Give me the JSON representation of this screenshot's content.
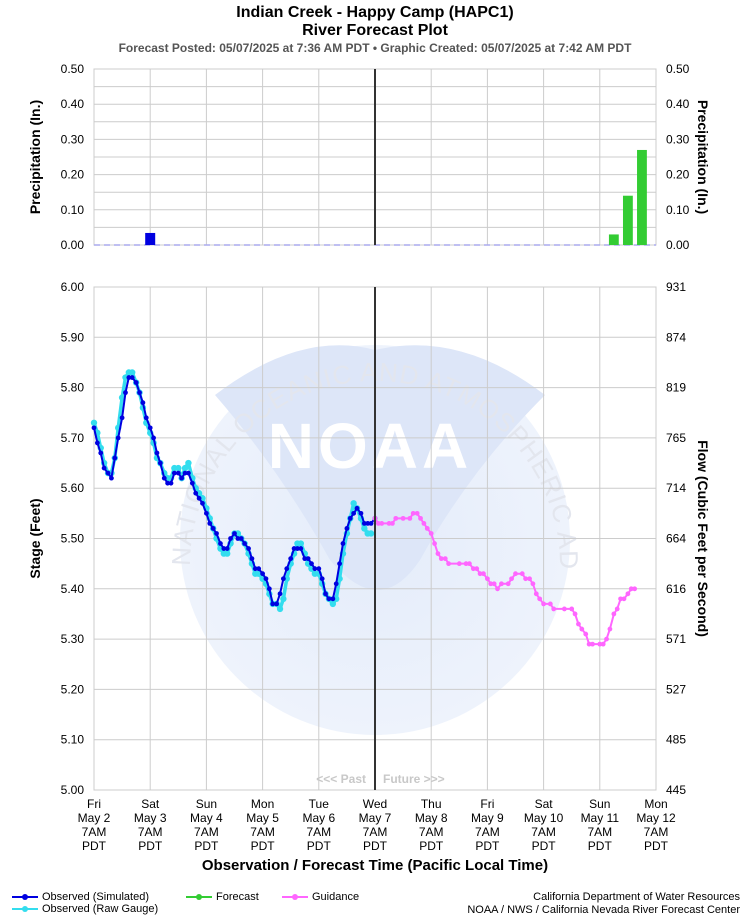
{
  "header": {
    "title": "Indian Creek - Happy Camp (HAPC1)",
    "subtitle": "River Forecast Plot",
    "posted": "Forecast Posted: 05/07/2025 at 7:36 AM PDT  •  Graphic Created: 05/07/2025 at 7:42 AM PDT"
  },
  "colors": {
    "observed_sim": "#0000e0",
    "observed_raw": "#33ddee",
    "forecast": "#33cc33",
    "guidance": "#ff66ff",
    "precip_obs": "#0000e0",
    "precip_fcst": "#33cc33",
    "now_line": "#333333",
    "grid": "#cccccc"
  },
  "watermark": {
    "logo_text": "NOAA",
    "ring_text": "NATIONAL OCEANIC AND ATMOSPHERIC ADMINISTRATION · U.S. DEPARTMENT OF COMMERCE",
    "past_label": "<<< Past",
    "future_label": "Future >>>"
  },
  "legend": {
    "observed_sim": "Observed (Simulated)",
    "observed_raw": "Observed (Raw Gauge)",
    "forecast": "Forecast",
    "guidance": "Guidance"
  },
  "credits": {
    "line1": "California Department of Water Resources",
    "line2": "NOAA / NWS / California Nevada River Forecast Center"
  },
  "chart_data": [
    {
      "type": "bar",
      "ylabel_left": "Precipitation (In.)",
      "ylabel_right": "Precipitation (In.)",
      "ylim": [
        0,
        0.5
      ],
      "yticks": [
        "0.00",
        "0.10",
        "0.20",
        "0.30",
        "0.40",
        "0.50"
      ],
      "grid": true,
      "observed_precip": [
        {
          "x": 1.0,
          "value": 0.02
        }
      ],
      "forecast_precip": [
        {
          "x": 9.25,
          "value": 0.03
        },
        {
          "x": 9.5,
          "value": 0.14
        },
        {
          "x": 9.75,
          "value": 0.27
        }
      ]
    },
    {
      "type": "line",
      "xlabel": "Observation / Forecast Time (Pacific Local Time)",
      "ylabel_left": "Stage (Feet)",
      "ylabel_right": "Flow (Cubic Feet per Second)",
      "ylim": [
        5.0,
        6.0
      ],
      "yticks": [
        "5.00",
        "5.10",
        "5.20",
        "5.30",
        "5.40",
        "5.50",
        "5.60",
        "5.70",
        "5.80",
        "5.90",
        "6.00"
      ],
      "flow_ticks": [
        "445",
        "485",
        "527",
        "571",
        "616",
        "664",
        "714",
        "765",
        "819",
        "874",
        "931"
      ],
      "grid": true,
      "now_x": 5.0,
      "x_ticks": [
        {
          "day": "Fri",
          "date": "May 2",
          "time": "7AM",
          "tz": "PDT"
        },
        {
          "day": "Sat",
          "date": "May 3",
          "time": "7AM",
          "tz": "PDT"
        },
        {
          "day": "Sun",
          "date": "May 4",
          "time": "7AM",
          "tz": "PDT"
        },
        {
          "day": "Mon",
          "date": "May 5",
          "time": "7AM",
          "tz": "PDT"
        },
        {
          "day": "Tue",
          "date": "May 6",
          "time": "7AM",
          "tz": "PDT"
        },
        {
          "day": "Wed",
          "date": "May 7",
          "time": "7AM",
          "tz": "PDT"
        },
        {
          "day": "Thu",
          "date": "May 8",
          "time": "7AM",
          "tz": "PDT"
        },
        {
          "day": "Fri",
          "date": "May 9",
          "time": "7AM",
          "tz": "PDT"
        },
        {
          "day": "Sat",
          "date": "May 10",
          "time": "7AM",
          "tz": "PDT"
        },
        {
          "day": "Sun",
          "date": "May 11",
          "time": "7AM",
          "tz": "PDT"
        },
        {
          "day": "Mon",
          "date": "May 12",
          "time": "7AM",
          "tz": "PDT"
        }
      ],
      "series": [
        {
          "name": "Observed (Raw Gauge)",
          "points": [
            [
              0.0,
              5.73
            ],
            [
              0.06,
              5.71
            ],
            [
              0.12,
              5.68
            ],
            [
              0.18,
              5.65
            ],
            [
              0.25,
              5.63
            ],
            [
              0.31,
              5.63
            ],
            [
              0.37,
              5.66
            ],
            [
              0.43,
              5.72
            ],
            [
              0.5,
              5.78
            ],
            [
              0.56,
              5.82
            ],
            [
              0.62,
              5.83
            ],
            [
              0.68,
              5.83
            ],
            [
              0.75,
              5.81
            ],
            [
              0.81,
              5.79
            ],
            [
              0.87,
              5.76
            ],
            [
              0.93,
              5.73
            ],
            [
              1.0,
              5.71
            ],
            [
              1.06,
              5.69
            ],
            [
              1.12,
              5.66
            ],
            [
              1.18,
              5.65
            ],
            [
              1.25,
              5.63
            ],
            [
              1.31,
              5.62
            ],
            [
              1.37,
              5.62
            ],
            [
              1.43,
              5.64
            ],
            [
              1.5,
              5.64
            ],
            [
              1.56,
              5.62
            ],
            [
              1.62,
              5.64
            ],
            [
              1.68,
              5.65
            ],
            [
              1.75,
              5.62
            ],
            [
              1.81,
              5.6
            ],
            [
              1.87,
              5.59
            ],
            [
              1.93,
              5.58
            ],
            [
              2.0,
              5.56
            ],
            [
              2.06,
              5.54
            ],
            [
              2.12,
              5.52
            ],
            [
              2.18,
              5.5
            ],
            [
              2.25,
              5.48
            ],
            [
              2.31,
              5.47
            ],
            [
              2.37,
              5.47
            ],
            [
              2.43,
              5.49
            ],
            [
              2.5,
              5.51
            ],
            [
              2.56,
              5.51
            ],
            [
              2.62,
              5.5
            ],
            [
              2.68,
              5.49
            ],
            [
              2.75,
              5.47
            ],
            [
              2.81,
              5.45
            ],
            [
              2.87,
              5.43
            ],
            [
              2.93,
              5.43
            ],
            [
              3.0,
              5.42
            ],
            [
              3.06,
              5.41
            ],
            [
              3.12,
              5.39
            ],
            [
              3.18,
              5.37
            ],
            [
              3.25,
              5.37
            ],
            [
              3.31,
              5.36
            ],
            [
              3.37,
              5.38
            ],
            [
              3.43,
              5.42
            ],
            [
              3.5,
              5.45
            ],
            [
              3.56,
              5.47
            ],
            [
              3.62,
              5.49
            ],
            [
              3.68,
              5.49
            ],
            [
              3.75,
              5.47
            ],
            [
              3.81,
              5.45
            ],
            [
              3.87,
              5.44
            ],
            [
              3.93,
              5.43
            ],
            [
              4.0,
              5.43
            ],
            [
              4.06,
              5.41
            ],
            [
              4.12,
              5.39
            ],
            [
              4.18,
              5.38
            ],
            [
              4.25,
              5.37
            ],
            [
              4.31,
              5.38
            ],
            [
              4.37,
              5.42
            ],
            [
              4.43,
              5.47
            ],
            [
              4.5,
              5.51
            ],
            [
              4.56,
              5.54
            ],
            [
              4.62,
              5.57
            ],
            [
              4.68,
              5.56
            ],
            [
              4.75,
              5.54
            ],
            [
              4.81,
              5.52
            ],
            [
              4.87,
              5.51
            ],
            [
              4.93,
              5.51
            ]
          ]
        },
        {
          "name": "Observed (Simulated)",
          "points": [
            [
              0.0,
              5.72
            ],
            [
              0.06,
              5.69
            ],
            [
              0.12,
              5.67
            ],
            [
              0.18,
              5.64
            ],
            [
              0.25,
              5.63
            ],
            [
              0.31,
              5.62
            ],
            [
              0.37,
              5.66
            ],
            [
              0.43,
              5.7
            ],
            [
              0.5,
              5.74
            ],
            [
              0.56,
              5.79
            ],
            [
              0.62,
              5.82
            ],
            [
              0.68,
              5.82
            ],
            [
              0.75,
              5.81
            ],
            [
              0.81,
              5.79
            ],
            [
              0.87,
              5.77
            ],
            [
              0.93,
              5.74
            ],
            [
              1.0,
              5.72
            ],
            [
              1.06,
              5.7
            ],
            [
              1.12,
              5.67
            ],
            [
              1.18,
              5.65
            ],
            [
              1.25,
              5.62
            ],
            [
              1.31,
              5.61
            ],
            [
              1.37,
              5.61
            ],
            [
              1.43,
              5.63
            ],
            [
              1.5,
              5.63
            ],
            [
              1.56,
              5.62
            ],
            [
              1.62,
              5.63
            ],
            [
              1.68,
              5.63
            ],
            [
              1.75,
              5.61
            ],
            [
              1.81,
              5.59
            ],
            [
              1.87,
              5.58
            ],
            [
              1.93,
              5.57
            ],
            [
              2.0,
              5.55
            ],
            [
              2.06,
              5.53
            ],
            [
              2.12,
              5.52
            ],
            [
              2.18,
              5.51
            ],
            [
              2.25,
              5.49
            ],
            [
              2.31,
              5.48
            ],
            [
              2.37,
              5.48
            ],
            [
              2.43,
              5.5
            ],
            [
              2.5,
              5.51
            ],
            [
              2.56,
              5.5
            ],
            [
              2.62,
              5.5
            ],
            [
              2.68,
              5.49
            ],
            [
              2.75,
              5.48
            ],
            [
              2.81,
              5.46
            ],
            [
              2.87,
              5.44
            ],
            [
              2.93,
              5.44
            ],
            [
              3.0,
              5.43
            ],
            [
              3.06,
              5.42
            ],
            [
              3.12,
              5.4
            ],
            [
              3.18,
              5.37
            ],
            [
              3.25,
              5.37
            ],
            [
              3.31,
              5.39
            ],
            [
              3.37,
              5.42
            ],
            [
              3.43,
              5.44
            ],
            [
              3.5,
              5.46
            ],
            [
              3.56,
              5.48
            ],
            [
              3.62,
              5.48
            ],
            [
              3.68,
              5.48
            ],
            [
              3.75,
              5.46
            ],
            [
              3.81,
              5.46
            ],
            [
              3.87,
              5.45
            ],
            [
              3.93,
              5.44
            ],
            [
              4.0,
              5.44
            ],
            [
              4.06,
              5.42
            ],
            [
              4.12,
              5.39
            ],
            [
              4.18,
              5.38
            ],
            [
              4.25,
              5.38
            ],
            [
              4.31,
              5.41
            ],
            [
              4.37,
              5.45
            ],
            [
              4.43,
              5.49
            ],
            [
              4.5,
              5.52
            ],
            [
              4.56,
              5.54
            ],
            [
              4.62,
              5.55
            ],
            [
              4.68,
              5.56
            ],
            [
              4.75,
              5.55
            ],
            [
              4.81,
              5.53
            ],
            [
              4.87,
              5.53
            ],
            [
              4.93,
              5.53
            ],
            [
              5.0,
              5.54
            ]
          ]
        },
        {
          "name": "Guidance",
          "points": [
            [
              5.0,
              5.54
            ],
            [
              5.06,
              5.53
            ],
            [
              5.12,
              5.53
            ],
            [
              5.25,
              5.53
            ],
            [
              5.31,
              5.53
            ],
            [
              5.37,
              5.54
            ],
            [
              5.5,
              5.54
            ],
            [
              5.62,
              5.54
            ],
            [
              5.68,
              5.55
            ],
            [
              5.75,
              5.55
            ],
            [
              5.81,
              5.54
            ],
            [
              5.87,
              5.53
            ],
            [
              5.93,
              5.52
            ],
            [
              6.0,
              5.51
            ],
            [
              6.06,
              5.49
            ],
            [
              6.12,
              5.47
            ],
            [
              6.18,
              5.46
            ],
            [
              6.25,
              5.46
            ],
            [
              6.31,
              5.45
            ],
            [
              6.5,
              5.45
            ],
            [
              6.62,
              5.45
            ],
            [
              6.68,
              5.45
            ],
            [
              6.75,
              5.44
            ],
            [
              6.81,
              5.44
            ],
            [
              6.87,
              5.43
            ],
            [
              6.93,
              5.43
            ],
            [
              7.0,
              5.42
            ],
            [
              7.06,
              5.41
            ],
            [
              7.12,
              5.41
            ],
            [
              7.18,
              5.4
            ],
            [
              7.25,
              5.41
            ],
            [
              7.37,
              5.41
            ],
            [
              7.43,
              5.42
            ],
            [
              7.5,
              5.43
            ],
            [
              7.62,
              5.43
            ],
            [
              7.68,
              5.42
            ],
            [
              7.75,
              5.42
            ],
            [
              7.81,
              5.41
            ],
            [
              7.87,
              5.39
            ],
            [
              7.93,
              5.38
            ],
            [
              8.0,
              5.37
            ],
            [
              8.12,
              5.37
            ],
            [
              8.18,
              5.36
            ],
            [
              8.37,
              5.36
            ],
            [
              8.5,
              5.36
            ],
            [
              8.56,
              5.35
            ],
            [
              8.62,
              5.33
            ],
            [
              8.68,
              5.32
            ],
            [
              8.75,
              5.31
            ],
            [
              8.81,
              5.29
            ],
            [
              8.87,
              5.29
            ],
            [
              9.0,
              5.29
            ],
            [
              9.06,
              5.29
            ],
            [
              9.12,
              5.3
            ],
            [
              9.18,
              5.32
            ],
            [
              9.25,
              5.35
            ],
            [
              9.31,
              5.36
            ],
            [
              9.37,
              5.38
            ],
            [
              9.43,
              5.38
            ],
            [
              9.5,
              5.39
            ],
            [
              9.56,
              5.4
            ],
            [
              9.62,
              5.4
            ]
          ]
        }
      ]
    }
  ]
}
